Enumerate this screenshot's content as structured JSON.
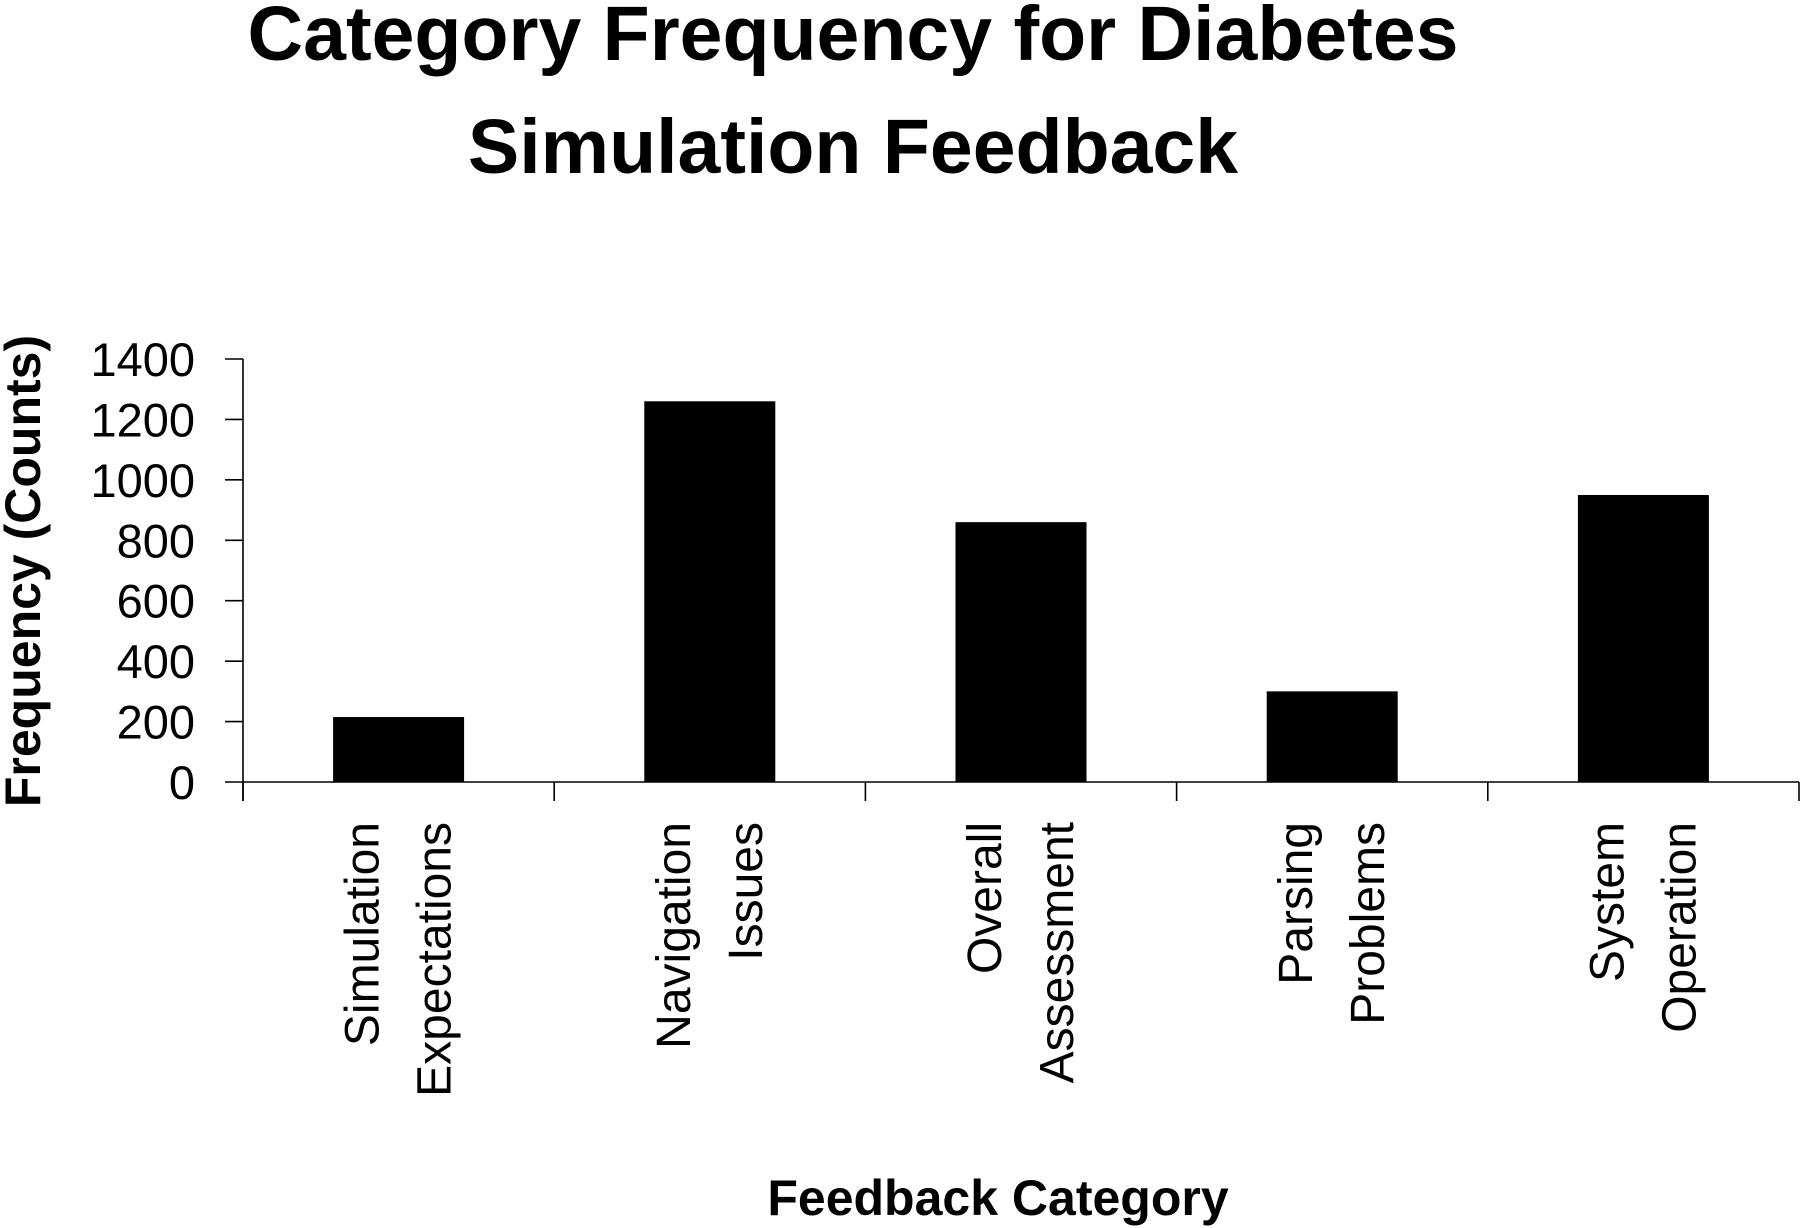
{
  "chart_data": {
    "type": "bar",
    "title_lines": [
      "Category Frequency for Diabetes",
      "Simulation Feedback"
    ],
    "xlabel": "Feedback Category",
    "ylabel": "Frequency (Counts)",
    "categories": [
      [
        "Simulation",
        "Expectations"
      ],
      [
        "Navigation",
        "Issues"
      ],
      [
        "Overall",
        "Assessment"
      ],
      [
        "Parsing",
        "Problems"
      ],
      [
        "System",
        "Operation"
      ]
    ],
    "values": [
      215,
      1260,
      860,
      300,
      950
    ],
    "ylim": [
      0,
      1400
    ],
    "yticks": [
      "0",
      "200",
      "400",
      "600",
      "800",
      "1000",
      "1200",
      "1400"
    ],
    "bar_color": "#000000",
    "grid": false,
    "legend": "none"
  }
}
